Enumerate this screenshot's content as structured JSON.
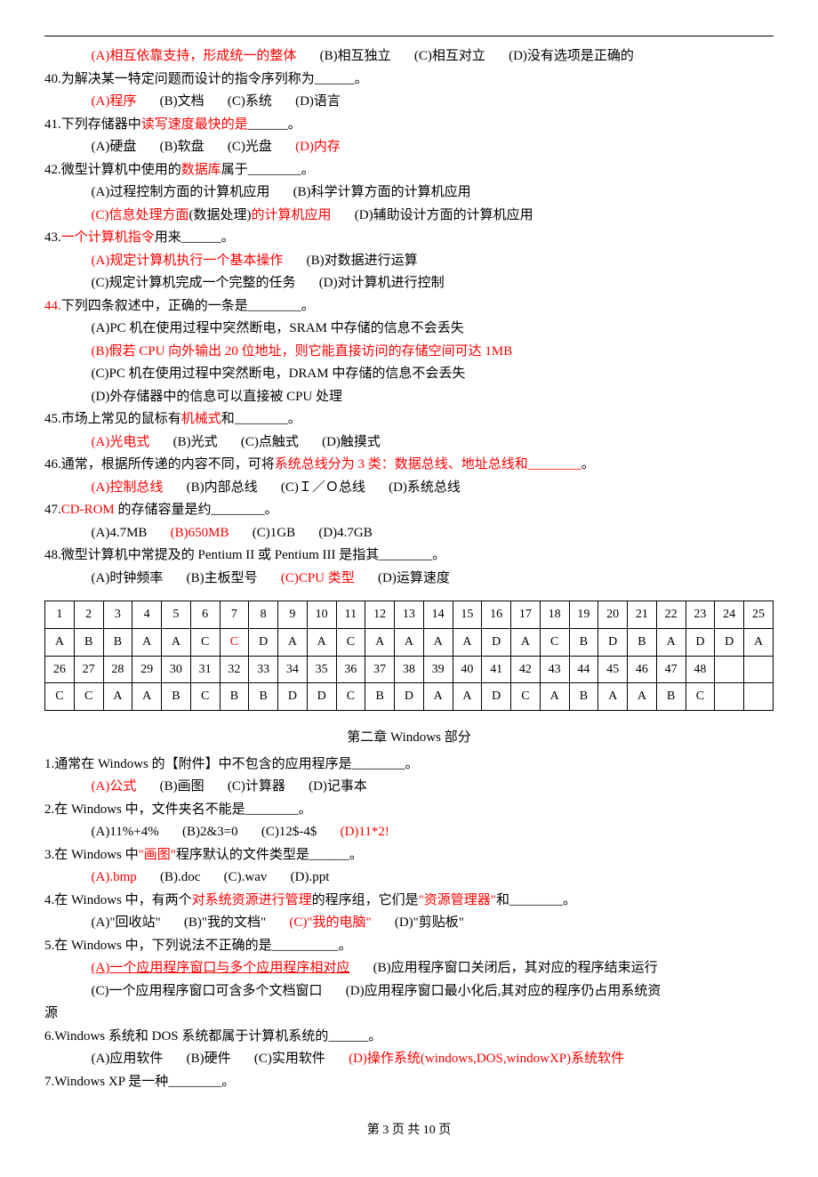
{
  "colors": {
    "highlight": "#ff0000",
    "text": "#000000",
    "bg": "#ffffff"
  },
  "q39_opts": {
    "a": "(A)相互依靠支持，形成统一的整体",
    "b": "(B)相互独立",
    "c": "(C)相互对立",
    "d": "(D)没有选项是正确的"
  },
  "q40": {
    "text": "40.为解决某一特定问题而设计的指令序列称为______。",
    "a": "(A)程序",
    "b": "(B)文档",
    "c": "(C)系统",
    "d": "(D)语言"
  },
  "q41": {
    "pre": "41.下列存储器中",
    "mid": "读写速度最快的是",
    "post": "______。",
    "a": "(A)硬盘",
    "b": "(B)软盘",
    "c": "(C)光盘",
    "d": "(D)内存"
  },
  "q42": {
    "pre": "42.微型计算机中使用的",
    "mid": "数据库",
    "post": "属于________。",
    "a": "(A)过程控制方面的计算机应用",
    "b": "(B)科学计算方面的计算机应用",
    "c1": "(C)信息处理方面",
    "c2": "(数据处理)",
    "c3": "的计算机应用",
    "d": "(D)辅助设计方面的计算机应用"
  },
  "q43": {
    "pre": "43.",
    "mid": "一个计算机指令",
    "post": "用来______。",
    "a": "(A)规定计算机执行一个基本操作",
    "b": "(B)对数据进行运算",
    "c": "(C)规定计算机完成一个完整的任务",
    "d": "(D)对计算机进行控制"
  },
  "q44": {
    "num": "44.",
    "text": "下列四条叙述中，正确的一条是________。",
    "a": "(A)PC 机在使用过程中突然断电，SRAM 中存储的信息不会丢失",
    "b": "(B)假若 CPU 向外输出 20 位地址，则它能直接访问的存储空间可达 1MB",
    "c": "(C)PC 机在使用过程中突然断电，DRAM 中存储的信息不会丢失",
    "d": "(D)外存储器中的信息可以直接被 CPU 处理"
  },
  "q45": {
    "pre": "45.市场上常见的鼠标有",
    "mid": "机械式",
    "post": "和________。",
    "a": "(A)光电式",
    "b": "(B)光式",
    "c": "(C)点触式",
    "d": "(D)触摸式"
  },
  "q46": {
    "pre": "46.通常，根据所传递的内容不同，可将",
    "mid": "系统总线分为 3 类：数据总线、地址总线和________",
    "post": "。",
    "a": "(A)控制总线",
    "b": "(B)内部总线",
    "c": "(C)Ｉ／Ｏ总线",
    "d": "(D)系统总线"
  },
  "q47": {
    "pre": "47.",
    "mid": "CD-ROM",
    "post": " 的存储容量是约________。",
    "a": "(A)4.7MB",
    "b": "(B)650MB",
    "c": "(C)1GB",
    "d": "(D)4.7GB"
  },
  "q48": {
    "text": "48.微型计算机中常提及的 Pentium II 或 Pentium III 是指其________。",
    "a": "(A)时钟频率",
    "b": "(B)主板型号",
    "c": "(C)CPU 类型",
    "d": "(D)运算速度"
  },
  "answer_table": {
    "header1": [
      "1",
      "2",
      "3",
      "4",
      "5",
      "6",
      "7",
      "8",
      "9",
      "10",
      "11",
      "12",
      "13",
      "14",
      "15",
      "16",
      "17",
      "18",
      "19",
      "20",
      "21",
      "22",
      "23",
      "24",
      "25"
    ],
    "row1": [
      "A",
      "B",
      "B",
      "A",
      "A",
      "C",
      "C",
      "D",
      "A",
      "A",
      "C",
      "A",
      "A",
      "A",
      "A",
      "D",
      "A",
      "C",
      "B",
      "D",
      "B",
      "A",
      "D",
      "D",
      "A"
    ],
    "row1_red_idx": [
      6
    ],
    "header2": [
      "26",
      "27",
      "28",
      "29",
      "30",
      "31",
      "32",
      "33",
      "34",
      "35",
      "36",
      "37",
      "38",
      "39",
      "40",
      "41",
      "42",
      "43",
      "44",
      "45",
      "46",
      "47",
      "48",
      "",
      ""
    ],
    "row2": [
      "C",
      "C",
      "A",
      "A",
      "B",
      "C",
      "B",
      "B",
      "D",
      "D",
      "C",
      "B",
      "D",
      "A",
      "A",
      "D",
      "C",
      "A",
      "B",
      "A",
      "A",
      "B",
      "C",
      "",
      ""
    ]
  },
  "section2_title": "第二章  Windows 部分",
  "w1": {
    "text": "1.通常在 Windows 的【附件】中不包含的应用程序是________。",
    "a": "(A)公式",
    "b": "(B)画图",
    "c": "(C)计算器",
    "d": "(D)记事本"
  },
  "w2": {
    "text": "2.在 Windows 中，文件夹名不能是________。",
    "a": "(A)11%+4%",
    "b": "(B)2&3=0",
    "c": "(C)12$-4$",
    "d": "(D)11*2!"
  },
  "w3": {
    "pre": "3.在 Windows 中",
    "mid": "\"画图\"",
    "post": "程序默认的文件类型是______。",
    "a": "(A).bmp",
    "b": "(B).doc",
    "c": "(C).wav",
    "d": "(D).ppt"
  },
  "w4": {
    "pre": "4.在 Windows 中，有两个",
    "mid1": "对系统资源进行管理",
    "mid2": "的程序组，它们是",
    "mid3": "\"资源管理器\"",
    "post": "和________。",
    "a": "(A)\"回收站\"",
    "b": "(B)\"我的文档\"",
    "c": "(C)\"我的电脑\"",
    "d": "(D)\"剪贴板\""
  },
  "w5": {
    "text": "5.在 Windows 中，下列说法不正确的是__________。",
    "a": "(A)一个应用程序窗口与多个应用程序相对应",
    "b": "(B)应用程序窗口关闭后，其对应的程序结束运行",
    "c": "(C)一个应用程序窗口可含多个文档窗口",
    "d": "(D)应用程序窗口最小化后,其对应的程序仍占用系统资",
    "tail": "源"
  },
  "w6": {
    "text": "6.Windows 系统和 DOS 系统都属于计算机系统的______。",
    "a": "(A)应用软件",
    "b": "(B)硬件",
    "c": "(C)实用软件",
    "d": "(D)操作系统(windows,DOS,windowXP)系统软件"
  },
  "w7": {
    "text": "7.Windows XP 是一种________。"
  },
  "footer": "第 3 页 共 10 页"
}
